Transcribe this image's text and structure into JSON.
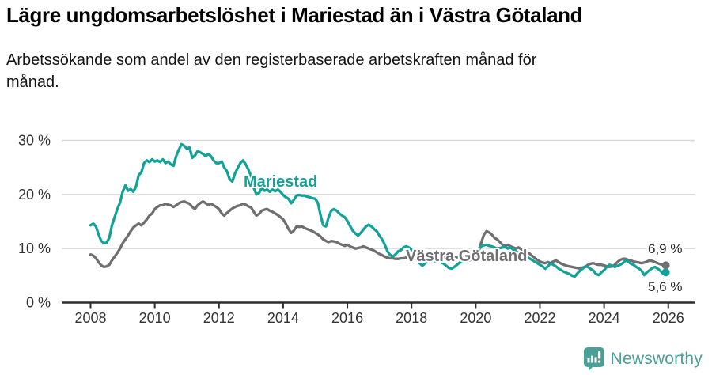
{
  "header": {
    "title": "Lägre ungdomsarbetslöshet i Mariestad än i Västra Götaland",
    "subtitle": "Arbetssökande som andel av den registerbaserade arbetskraften månad för månad."
  },
  "footer": {
    "brand": "Newsworthy",
    "brand_color": "#4a9f97"
  },
  "chart_data": {
    "type": "line",
    "title": "Lägre ungdomsarbetslöshet i Mariestad än i Västra Götaland",
    "subtitle": "Arbetssökande som andel av den registerbaserade arbetskraften månad för månad.",
    "unit": "%",
    "x_start_year": 2008,
    "x_months_per_point": 1,
    "x_tick_years": [
      2008,
      2010,
      2012,
      2014,
      2016,
      2018,
      2020,
      2022,
      2024,
      2026
    ],
    "y_ticks": [
      {
        "value": 0,
        "label": "0 %"
      },
      {
        "value": 10,
        "label": "10 %"
      },
      {
        "value": 20,
        "label": "20 %"
      },
      {
        "value": 30,
        "label": "30 %"
      }
    ],
    "ylim": [
      0,
      32
    ],
    "grid": true,
    "legend_position": "inline-labels",
    "colors": {
      "grid": "#d9d9d9",
      "axis": "#2d2d2d",
      "tick_text": "#333333"
    },
    "series": [
      {
        "name": "Mariestad",
        "color": "#12a297",
        "end_label": "5,6 %",
        "end_value": 5.6,
        "values": [
          14.3,
          14.6,
          14.1,
          12.6,
          11.4,
          11.0,
          11.1,
          12.0,
          14.3,
          15.8,
          17.3,
          18.5,
          20.5,
          21.7,
          20.7,
          21.0,
          20.5,
          21.5,
          23.6,
          24.1,
          25.8,
          26.3,
          26.0,
          26.5,
          26.1,
          26.3,
          26.0,
          26.5,
          25.8,
          26.1,
          25.6,
          25.3,
          27.1,
          28.3,
          29.3,
          29.0,
          28.5,
          28.7,
          26.8,
          27.2,
          28.0,
          27.8,
          27.5,
          27.1,
          27.5,
          27.1,
          26.3,
          25.8,
          25.8,
          26.1,
          25.0,
          24.3,
          22.8,
          22.4,
          23.9,
          24.9,
          25.8,
          26.3,
          25.6,
          24.6,
          23.4,
          21.2,
          20.0,
          20.3,
          21.2,
          20.7,
          20.9,
          20.5,
          20.9,
          20.6,
          20.9,
          20.5,
          19.9,
          19.5,
          19.2,
          18.4,
          19.0,
          19.8,
          19.9,
          19.8,
          19.8,
          19.6,
          19.5,
          19.3,
          19.2,
          18.4,
          16.1,
          14.3,
          14.1,
          15.8,
          17.0,
          17.3,
          17.0,
          16.5,
          16.1,
          15.8,
          15.1,
          14.2,
          13.3,
          12.8,
          12.4,
          12.9,
          13.5,
          14.1,
          14.4,
          14.1,
          13.6,
          13.2,
          12.4,
          11.7,
          10.7,
          9.5,
          8.8,
          8.5,
          8.9,
          9.5,
          9.7,
          10.2,
          10.4,
          10.2,
          9.8,
          9.2,
          8.4,
          7.3,
          6.8,
          7.2,
          7.8,
          8.1,
          7.9,
          7.6,
          7.8,
          7.5,
          7.2,
          6.8,
          6.4,
          6.3,
          6.6,
          7.0,
          7.4,
          7.6,
          7.5,
          7.7,
          7.9,
          8.1,
          8.9,
          9.6,
          10.4,
          10.6,
          10.7,
          10.5,
          10.4,
          10.2,
          10.0,
          10.1,
          10.2,
          10.3,
          10.0,
          10.2,
          9.8,
          9.5,
          9.2,
          9.0,
          8.8,
          8.5,
          8.2,
          7.9,
          7.6,
          7.3,
          7.0,
          6.7,
          6.3,
          6.7,
          7.3,
          7.0,
          6.7,
          6.3,
          6.0,
          5.7,
          5.5,
          5.3,
          5.0,
          4.8,
          5.4,
          5.9,
          6.3,
          6.7,
          6.6,
          6.2,
          5.9,
          5.3,
          5.1,
          5.6,
          6.0,
          6.6,
          7.0,
          6.8,
          6.6,
          6.8,
          7.0,
          7.3,
          7.8,
          7.6,
          7.2,
          7.0,
          6.6,
          6.3,
          5.9,
          5.1,
          5.6,
          6.0,
          6.4,
          6.6,
          6.3,
          5.9,
          5.4,
          5.6
        ]
      },
      {
        "name": "Västra Götaland",
        "color": "#6f6f72",
        "end_label": "6,9 %",
        "end_value": 6.9,
        "values": [
          8.9,
          8.7,
          8.2,
          7.5,
          6.9,
          6.6,
          6.7,
          7.0,
          7.8,
          8.5,
          9.2,
          10.0,
          11.0,
          11.7,
          12.4,
          13.2,
          13.9,
          14.3,
          14.6,
          14.3,
          14.8,
          15.4,
          16.1,
          16.5,
          17.3,
          17.7,
          18.0,
          18.0,
          18.3,
          18.1,
          18.0,
          17.7,
          18.0,
          18.4,
          18.6,
          18.7,
          18.5,
          18.3,
          17.7,
          17.3,
          18.0,
          18.4,
          18.7,
          18.4,
          18.1,
          18.3,
          18.0,
          17.7,
          17.3,
          16.5,
          16.1,
          16.6,
          17.0,
          17.4,
          17.7,
          17.9,
          18.0,
          18.3,
          18.1,
          17.8,
          17.6,
          16.8,
          16.1,
          16.4,
          17.0,
          17.2,
          17.3,
          17.0,
          16.8,
          16.5,
          16.2,
          15.8,
          15.4,
          14.6,
          13.6,
          12.9,
          13.3,
          14.1,
          14.0,
          14.1,
          13.8,
          13.6,
          13.4,
          13.2,
          12.9,
          12.6,
          12.2,
          11.7,
          11.4,
          11.2,
          11.4,
          11.3,
          11.2,
          10.9,
          10.7,
          10.5,
          10.7,
          10.4,
          10.2,
          10.0,
          10.1,
          10.2,
          10.4,
          10.2,
          10.0,
          9.8,
          9.6,
          9.3,
          9.0,
          8.8,
          8.5,
          8.3,
          8.2,
          8.2,
          8.1,
          8.1,
          8.2,
          8.2,
          8.3,
          8.2,
          8.2,
          8.1,
          8.0,
          7.9,
          7.9,
          8.0,
          8.1,
          8.2,
          8.1,
          8.2,
          8.3,
          8.3,
          8.4,
          8.3,
          8.2,
          8.2,
          8.3,
          8.4,
          8.5,
          8.4,
          8.3,
          8.2,
          8.3,
          8.5,
          9.0,
          9.5,
          11.0,
          12.5,
          13.2,
          13.0,
          12.6,
          12.0,
          11.7,
          11.2,
          10.7,
          10.5,
          10.7,
          10.4,
          10.2,
          10.0,
          10.2,
          9.9,
          9.7,
          9.4,
          9.1,
          8.7,
          8.3,
          7.9,
          7.6,
          7.4,
          7.3,
          7.5,
          7.3,
          7.6,
          7.8,
          7.5,
          7.2,
          7.0,
          6.8,
          6.7,
          6.6,
          6.5,
          6.4,
          6.3,
          6.5,
          6.6,
          7.0,
          7.2,
          7.3,
          7.1,
          7.0,
          7.0,
          6.9,
          6.7,
          6.6,
          6.7,
          7.0,
          7.5,
          7.9,
          8.1,
          8.1,
          7.9,
          7.8,
          7.6,
          7.5,
          7.4,
          7.3,
          7.4,
          7.6,
          7.8,
          7.7,
          7.5,
          7.3,
          7.1,
          7.0,
          6.9
        ]
      }
    ]
  }
}
